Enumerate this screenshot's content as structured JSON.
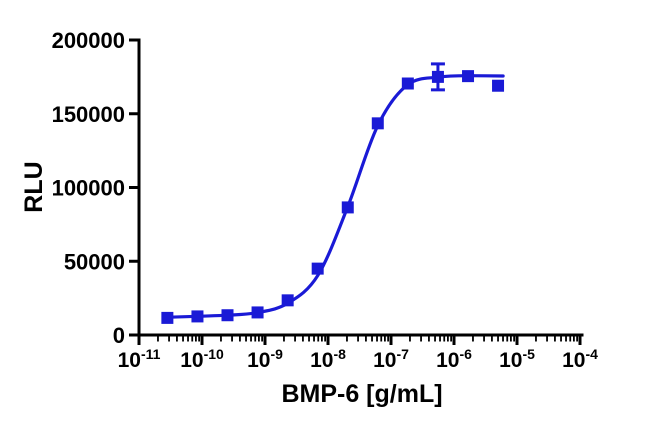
{
  "chart_data": {
    "type": "scatter",
    "subtype": "dose-response-curve-with-sigmoidal-fit",
    "title": "",
    "xlabel": "BMP-6 [g/mL]",
    "ylabel": "RLU",
    "x_scale": "log10",
    "x_exponent_range": [
      -11,
      -4
    ],
    "ylim": [
      0,
      200000
    ],
    "grid": false,
    "legend": null,
    "x_tick_exponents": [
      -11,
      -10,
      -9,
      -8,
      -7,
      -6,
      -5,
      -4
    ],
    "x_tick_base": "10",
    "y_ticks": [
      0,
      50000,
      100000,
      150000,
      200000
    ],
    "y_tick_labels": [
      "0",
      "50000",
      "100000",
      "150000",
      "200000"
    ],
    "series": [
      {
        "name": "BMP-6",
        "marker": "square",
        "color": "#1a1ad6",
        "x_g_per_mL": [
          2.82e-11,
          8.47e-11,
          2.54e-10,
          7.62e-10,
          2.29e-09,
          6.86e-09,
          2.06e-08,
          6.17e-08,
          1.85e-07,
          5.56e-07,
          1.67e-06,
          5e-06
        ],
        "y_rlu": [
          11600,
          12600,
          13400,
          15300,
          23500,
          45000,
          86500,
          143500,
          170500,
          175000,
          175500,
          169000
        ],
        "y_sem": [
          0,
          0,
          0,
          0,
          0,
          0,
          0,
          0,
          0,
          8800,
          0,
          0
        ]
      }
    ],
    "fit_curve": {
      "description": "four-parameter logistic fit",
      "color": "#1a1ad6",
      "points_log10x_y": [
        [
          -10.58,
          12000
        ],
        [
          -10.07,
          12700
        ],
        [
          -9.6,
          13400
        ],
        [
          -9.12,
          15200
        ],
        [
          -8.64,
          21500
        ],
        [
          -8.16,
          40500
        ],
        [
          -7.69,
          86500
        ],
        [
          -7.21,
          142000
        ],
        [
          -6.73,
          169800
        ],
        [
          -6.26,
          174800
        ],
        [
          -5.78,
          175800
        ],
        [
          -5.22,
          175600
        ]
      ]
    }
  },
  "colors": {
    "series_blue": "#1a1ad6",
    "axis_black": "#000000",
    "background": "#ffffff"
  }
}
